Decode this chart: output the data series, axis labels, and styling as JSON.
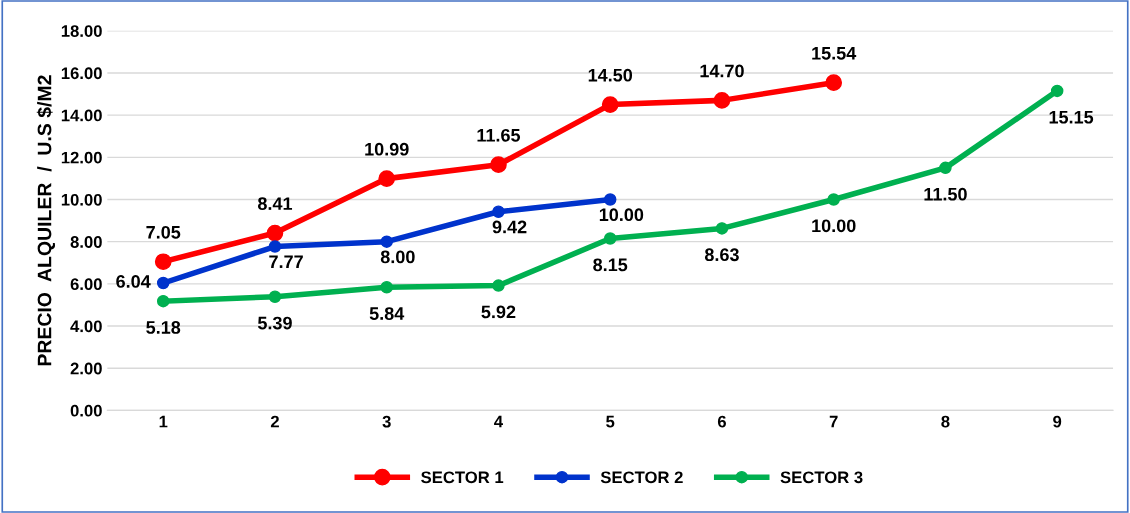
{
  "chart_data": {
    "type": "line",
    "ylabel": "PRECIO  ALQUILER  /  U.S $/M2",
    "categories": [
      "1",
      "2",
      "3",
      "4",
      "5",
      "6",
      "7",
      "8",
      "9"
    ],
    "series": [
      {
        "name": "SECTOR 1",
        "color": "#ff0000",
        "values": [
          7.05,
          8.41,
          10.99,
          11.65,
          14.5,
          14.7,
          15.54,
          null,
          null
        ],
        "value_labels": [
          "7.05",
          "8.41",
          "10.99",
          "11.65",
          "14.50",
          "14.70",
          "15.54",
          null,
          null
        ]
      },
      {
        "name": "SECTOR 2",
        "color": "#0033cc",
        "values": [
          6.04,
          7.77,
          8.0,
          9.42,
          10.0,
          null,
          null,
          null,
          null
        ],
        "value_labels": [
          "6.04",
          "7.77",
          "8.00",
          "9.42",
          "10.00",
          null,
          null,
          null,
          null
        ]
      },
      {
        "name": "SECTOR 3",
        "color": "#00b050",
        "values": [
          5.18,
          5.39,
          5.84,
          5.92,
          8.15,
          8.63,
          10.0,
          11.5,
          15.15
        ],
        "value_labels": [
          "5.18",
          "5.39",
          "5.84",
          "5.92",
          "8.15",
          "8.63",
          "10.00",
          "11.50",
          "15.15"
        ]
      }
    ],
    "ylim": [
      0,
      18
    ],
    "yticks": [
      {
        "value": 0,
        "label": "0.00"
      },
      {
        "value": 2,
        "label": "2.00"
      },
      {
        "value": 4,
        "label": "4.00"
      },
      {
        "value": 6,
        "label": "6.00"
      },
      {
        "value": 8,
        "label": "8.00"
      },
      {
        "value": 10,
        "label": "10.00"
      },
      {
        "value": 12,
        "label": "12.00"
      },
      {
        "value": 14,
        "label": "14.00"
      },
      {
        "value": 16,
        "label": "16.00"
      },
      {
        "value": 18,
        "label": "18.00"
      }
    ],
    "grid": "y",
    "legend": "bottom",
    "marker": "circle",
    "line_style": "solid"
  }
}
